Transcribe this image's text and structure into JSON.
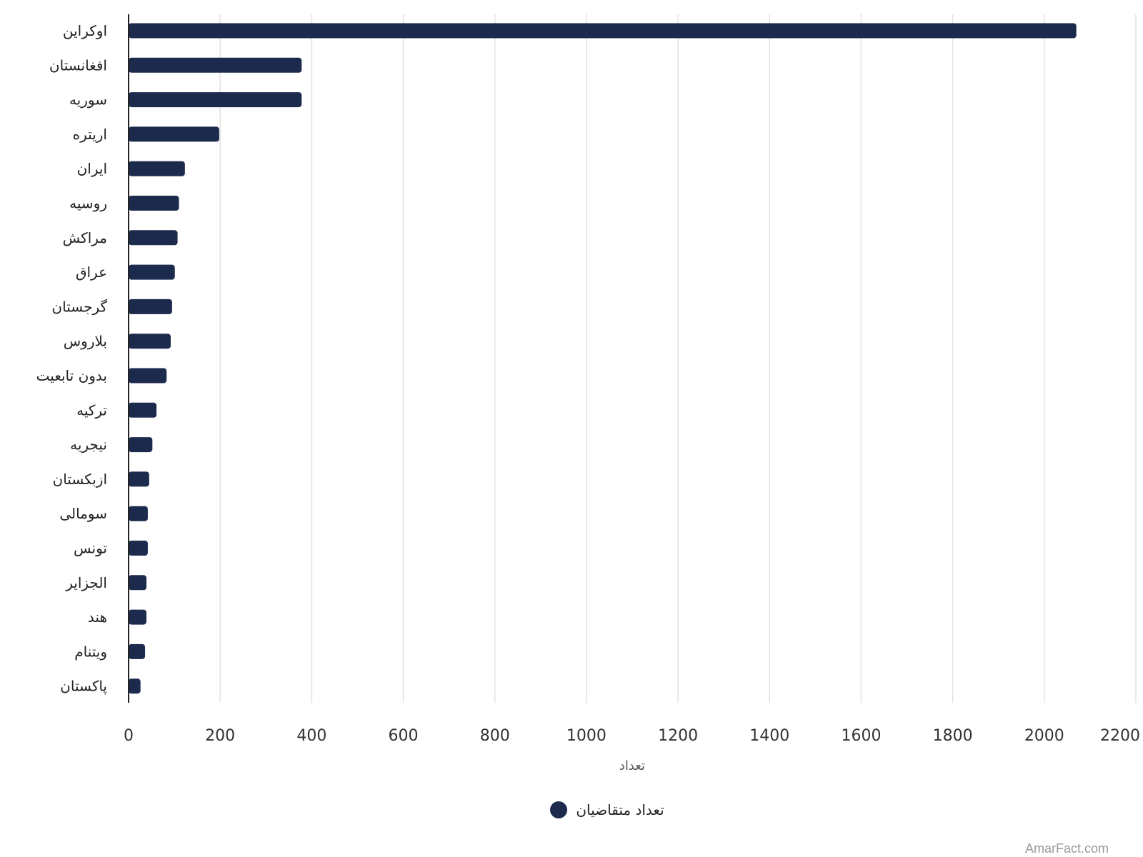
{
  "chart_data": {
    "type": "bar",
    "orientation": "horizontal",
    "categories": [
      "اوکراین",
      "افغانستان",
      "سوریه",
      "اریتره",
      "ایران",
      "روسیه",
      "مراکش",
      "عراق",
      "گرجستان",
      "بلاروس",
      "بدون تابعیت",
      "ترکیه",
      "نیجریه",
      "ازبکستان",
      "سومالی",
      "تونس",
      "الجزایر",
      "هند",
      "ویتنام",
      "پاکستان"
    ],
    "series": [
      {
        "name": "تعداد متقاضیان",
        "values": [
          2070,
          378,
          378,
          198,
          123,
          110,
          107,
          101,
          95,
          92,
          83,
          61,
          52,
          45,
          42,
          42,
          39,
          39,
          36,
          26
        ],
        "color": "#1c2a4d"
      }
    ],
    "xlabel": "تعداد",
    "ylabel": "",
    "xlim": [
      0,
      2200
    ],
    "xticks": [
      "0",
      "200",
      "400",
      "600",
      "800",
      "1000",
      "1200",
      "1400",
      "1600",
      "1800",
      "2000",
      "2200"
    ],
    "grid": true,
    "legend": "bottom-center"
  },
  "watermark": "AmarFact.com"
}
